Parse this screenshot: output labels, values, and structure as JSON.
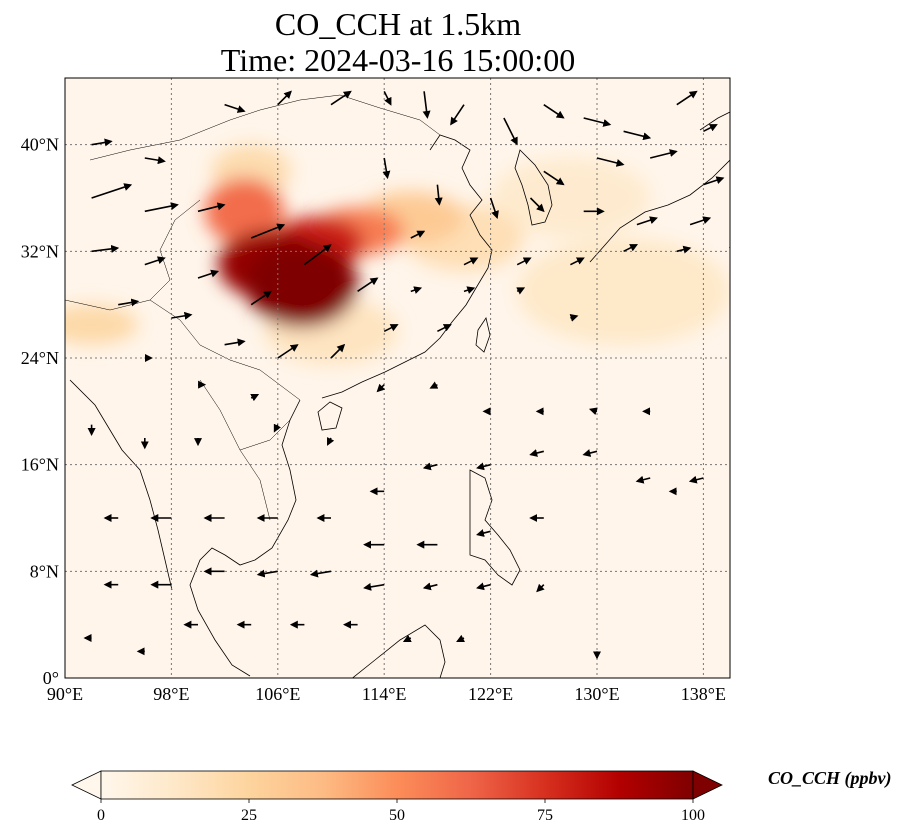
{
  "title": {
    "line1": "CO_CCH at 1.5km",
    "line2": "Time: 2024-03-16 15:00:00"
  },
  "map": {
    "extent": {
      "lon": [
        90,
        140
      ],
      "lat": [
        0,
        45
      ]
    },
    "lon_ticks": [
      {
        "value": 90,
        "label": "90°E"
      },
      {
        "value": 98,
        "label": "98°E"
      },
      {
        "value": 106,
        "label": "106°E"
      },
      {
        "value": 114,
        "label": "114°E"
      },
      {
        "value": 122,
        "label": "122°E"
      },
      {
        "value": 130,
        "label": "130°E"
      },
      {
        "value": 138,
        "label": "138°E"
      }
    ],
    "lat_ticks": [
      {
        "value": 0,
        "label": "0°"
      },
      {
        "value": 8,
        "label": "8°N"
      },
      {
        "value": 16,
        "label": "16°N"
      },
      {
        "value": 24,
        "label": "24°N"
      },
      {
        "value": 32,
        "label": "32°N"
      },
      {
        "value": 40,
        "label": "40°N"
      }
    ],
    "gridlines": true,
    "field_blobs": [
      {
        "lon": 107.8,
        "lat": 29.5,
        "rlon": 4.2,
        "rlat": 3.2,
        "value": 100
      },
      {
        "lon": 105.5,
        "lat": 31.0,
        "rlon": 4.0,
        "rlat": 2.6,
        "value": 95
      },
      {
        "lon": 109.0,
        "lat": 32.6,
        "rlon": 3.5,
        "rlat": 2.0,
        "value": 80
      },
      {
        "lon": 103.5,
        "lat": 35.0,
        "rlon": 3.0,
        "rlat": 2.5,
        "value": 60
      },
      {
        "lon": 112.0,
        "lat": 33.5,
        "rlon": 3.5,
        "rlat": 1.8,
        "value": 55
      },
      {
        "lon": 116.0,
        "lat": 34.5,
        "rlon": 4.0,
        "rlat": 2.0,
        "value": 30
      },
      {
        "lon": 120.0,
        "lat": 33.0,
        "rlon": 4.5,
        "rlat": 2.5,
        "value": 18
      },
      {
        "lon": 92.0,
        "lat": 26.5,
        "rlon": 3.5,
        "rlat": 1.5,
        "value": 22
      },
      {
        "lon": 104.0,
        "lat": 38.0,
        "rlon": 3.0,
        "rlat": 2.0,
        "value": 20
      },
      {
        "lon": 132.0,
        "lat": 29.0,
        "rlon": 8.0,
        "rlat": 4.0,
        "value": 12
      },
      {
        "lon": 128.0,
        "lat": 36.0,
        "rlon": 6.0,
        "rlat": 3.0,
        "value": 10
      },
      {
        "lon": 110.0,
        "lat": 26.0,
        "rlon": 5.0,
        "rlat": 2.5,
        "value": 15
      }
    ],
    "wind_vectors": [
      {
        "lon": 92,
        "lat": 36,
        "u": 6,
        "v": 2
      },
      {
        "lon": 96,
        "lat": 35,
        "u": 5,
        "v": 1
      },
      {
        "lon": 100,
        "lat": 35,
        "u": 4,
        "v": 1
      },
      {
        "lon": 104,
        "lat": 33,
        "u": 5,
        "v": 2
      },
      {
        "lon": 108,
        "lat": 31,
        "u": 4,
        "v": 3
      },
      {
        "lon": 112,
        "lat": 29,
        "u": 3,
        "v": 2
      },
      {
        "lon": 92,
        "lat": 32,
        "u": 4,
        "v": 0.5
      },
      {
        "lon": 96,
        "lat": 31,
        "u": 3,
        "v": 1
      },
      {
        "lon": 100,
        "lat": 30,
        "u": 3,
        "v": 1
      },
      {
        "lon": 104,
        "lat": 28,
        "u": 3,
        "v": 2
      },
      {
        "lon": 94,
        "lat": 28,
        "u": 3,
        "v": 0.5
      },
      {
        "lon": 98,
        "lat": 27,
        "u": 3,
        "v": 0.5
      },
      {
        "lon": 102,
        "lat": 25,
        "u": 3,
        "v": 0.5
      },
      {
        "lon": 106,
        "lat": 24,
        "u": 3,
        "v": 2
      },
      {
        "lon": 110,
        "lat": 24,
        "u": 2,
        "v": 2
      },
      {
        "lon": 114,
        "lat": 26,
        "u": 2,
        "v": 1
      },
      {
        "lon": 118,
        "lat": 26,
        "u": 2,
        "v": 1
      },
      {
        "lon": 96,
        "lat": 24,
        "u": 1,
        "v": 0
      },
      {
        "lon": 100,
        "lat": 22,
        "u": 1,
        "v": 0
      },
      {
        "lon": 104,
        "lat": 21,
        "u": 1,
        "v": 0.5
      },
      {
        "lon": 92,
        "lat": 40,
        "u": 3,
        "v": 0.5
      },
      {
        "lon": 96,
        "lat": 39,
        "u": 3,
        "v": -0.5
      },
      {
        "lon": 102,
        "lat": 43,
        "u": 3,
        "v": -1
      },
      {
        "lon": 106,
        "lat": 43,
        "u": 2,
        "v": 2
      },
      {
        "lon": 110,
        "lat": 43,
        "u": 3,
        "v": 2
      },
      {
        "lon": 114,
        "lat": 44,
        "u": 1,
        "v": -2
      },
      {
        "lon": 117,
        "lat": 44,
        "u": 0.5,
        "v": -4
      },
      {
        "lon": 120,
        "lat": 43,
        "u": -2,
        "v": -3
      },
      {
        "lon": 123,
        "lat": 42,
        "u": 2,
        "v": -4
      },
      {
        "lon": 126,
        "lat": 43,
        "u": 3,
        "v": -2
      },
      {
        "lon": 129,
        "lat": 42,
        "u": 4,
        "v": -1
      },
      {
        "lon": 132,
        "lat": 41,
        "u": 4,
        "v": -1
      },
      {
        "lon": 136,
        "lat": 43,
        "u": 3,
        "v": 2
      },
      {
        "lon": 138,
        "lat": 41,
        "u": 2,
        "v": 1
      },
      {
        "lon": 126,
        "lat": 38,
        "u": 3,
        "v": -2
      },
      {
        "lon": 130,
        "lat": 39,
        "u": 4,
        "v": -1
      },
      {
        "lon": 134,
        "lat": 39,
        "u": 4,
        "v": 1
      },
      {
        "lon": 138,
        "lat": 37,
        "u": 3,
        "v": 1
      },
      {
        "lon": 114,
        "lat": 39,
        "u": 0.5,
        "v": -3
      },
      {
        "lon": 118,
        "lat": 37,
        "u": 0.3,
        "v": -3
      },
      {
        "lon": 122,
        "lat": 36,
        "u": 1,
        "v": -3
      },
      {
        "lon": 125,
        "lat": 36,
        "u": 2,
        "v": -2
      },
      {
        "lon": 129,
        "lat": 35,
        "u": 3,
        "v": 0
      },
      {
        "lon": 133,
        "lat": 34,
        "u": 3,
        "v": 1
      },
      {
        "lon": 137,
        "lat": 34,
        "u": 3,
        "v": 1
      },
      {
        "lon": 116,
        "lat": 33,
        "u": 2,
        "v": 1
      },
      {
        "lon": 120,
        "lat": 31,
        "u": 2,
        "v": 1
      },
      {
        "lon": 124,
        "lat": 31,
        "u": 2,
        "v": 1
      },
      {
        "lon": 128,
        "lat": 31,
        "u": 2,
        "v": 1
      },
      {
        "lon": 132,
        "lat": 32,
        "u": 2,
        "v": 1
      },
      {
        "lon": 136,
        "lat": 32,
        "u": 2,
        "v": 0.5
      },
      {
        "lon": 140,
        "lat": 32,
        "u": 1,
        "v": 0.5
      },
      {
        "lon": 116,
        "lat": 29,
        "u": 1.5,
        "v": 0.5
      },
      {
        "lon": 120,
        "lat": 29,
        "u": 1.5,
        "v": 0.5
      },
      {
        "lon": 124,
        "lat": 29,
        "u": 1,
        "v": 0.5
      },
      {
        "lon": 128,
        "lat": 27,
        "u": 1,
        "v": 0.3
      },
      {
        "lon": 114,
        "lat": 22,
        "u": -1,
        "v": -1
      },
      {
        "lon": 118,
        "lat": 22,
        "u": -1,
        "v": -0.5
      },
      {
        "lon": 122,
        "lat": 20,
        "u": -1,
        "v": 0
      },
      {
        "lon": 126,
        "lat": 20,
        "u": -1,
        "v": 0
      },
      {
        "lon": 130,
        "lat": 20,
        "u": -1,
        "v": 0.3
      },
      {
        "lon": 134,
        "lat": 20,
        "u": -1,
        "v": 0
      },
      {
        "lon": 126,
        "lat": 17,
        "u": -2,
        "v": -0.5
      },
      {
        "lon": 130,
        "lat": 17,
        "u": -2,
        "v": -0.5
      },
      {
        "lon": 134,
        "lat": 15,
        "u": -2,
        "v": -0.5
      },
      {
        "lon": 138,
        "lat": 15,
        "u": -2,
        "v": -0.5
      },
      {
        "lon": 122,
        "lat": 16,
        "u": -2,
        "v": -0.5
      },
      {
        "lon": 118,
        "lat": 16,
        "u": -2,
        "v": -0.5
      },
      {
        "lon": 114,
        "lat": 14,
        "u": -2,
        "v": 0
      },
      {
        "lon": 110,
        "lat": 12,
        "u": -2,
        "v": 0
      },
      {
        "lon": 106,
        "lat": 12,
        "u": -3,
        "v": 0
      },
      {
        "lon": 102,
        "lat": 12,
        "u": -3,
        "v": 0
      },
      {
        "lon": 98,
        "lat": 12,
        "u": -3,
        "v": 0
      },
      {
        "lon": 94,
        "lat": 12,
        "u": -2,
        "v": 0
      },
      {
        "lon": 114,
        "lat": 10,
        "u": -3,
        "v": 0
      },
      {
        "lon": 118,
        "lat": 10,
        "u": -3,
        "v": 0
      },
      {
        "lon": 122,
        "lat": 11,
        "u": -2,
        "v": -0.5
      },
      {
        "lon": 126,
        "lat": 12,
        "u": -2,
        "v": 0
      },
      {
        "lon": 110,
        "lat": 8,
        "u": -3,
        "v": -0.5
      },
      {
        "lon": 106,
        "lat": 8,
        "u": -3,
        "v": -0.5
      },
      {
        "lon": 102,
        "lat": 8,
        "u": -3,
        "v": 0
      },
      {
        "lon": 98,
        "lat": 7,
        "u": -3,
        "v": 0
      },
      {
        "lon": 94,
        "lat": 7,
        "u": -2,
        "v": 0
      },
      {
        "lon": 114,
        "lat": 7,
        "u": -3,
        "v": -0.5
      },
      {
        "lon": 118,
        "lat": 7,
        "u": -2,
        "v": -0.5
      },
      {
        "lon": 122,
        "lat": 7,
        "u": -2,
        "v": -0.5
      },
      {
        "lon": 126,
        "lat": 7,
        "u": -1,
        "v": -1
      },
      {
        "lon": 100,
        "lat": 4,
        "u": -2,
        "v": 0
      },
      {
        "lon": 104,
        "lat": 4,
        "u": -2,
        "v": 0
      },
      {
        "lon": 108,
        "lat": 4,
        "u": -2,
        "v": 0
      },
      {
        "lon": 112,
        "lat": 4,
        "u": -2,
        "v": 0
      },
      {
        "lon": 116,
        "lat": 3,
        "u": -1,
        "v": -0.5
      },
      {
        "lon": 120,
        "lat": 3,
        "u": -1,
        "v": -0.5
      },
      {
        "lon": 96,
        "lat": 2,
        "u": -1,
        "v": 0
      },
      {
        "lon": 92,
        "lat": 3,
        "u": -1,
        "v": 0
      },
      {
        "lon": 130,
        "lat": 2,
        "u": 0,
        "v": -1
      },
      {
        "lon": 136,
        "lat": 14,
        "u": -1,
        "v": 0
      },
      {
        "lon": 96,
        "lat": 18,
        "u": 0,
        "v": -1.5
      },
      {
        "lon": 92,
        "lat": 19,
        "u": 0,
        "v": -1.5
      },
      {
        "lon": 100,
        "lat": 18,
        "u": 0,
        "v": -1
      },
      {
        "lon": 110,
        "lat": 18,
        "u": -0.5,
        "v": -1
      },
      {
        "lon": 106,
        "lat": 19,
        "u": -0.5,
        "v": -1
      }
    ]
  },
  "colorbar": {
    "label": "CO_CCH (ppbv)",
    "min": 0,
    "max": 100,
    "ticks": [
      {
        "value": 0,
        "label": "0"
      },
      {
        "value": 25,
        "label": "25"
      },
      {
        "value": 50,
        "label": "50"
      },
      {
        "value": 75,
        "label": "75"
      },
      {
        "value": 100,
        "label": "100"
      }
    ],
    "extend": "both",
    "colormap": [
      "#fff7ec",
      "#fee8c8",
      "#fdd49e",
      "#fdbb84",
      "#fc8d59",
      "#ef6548",
      "#d7301f",
      "#b30000",
      "#7f0000"
    ]
  }
}
